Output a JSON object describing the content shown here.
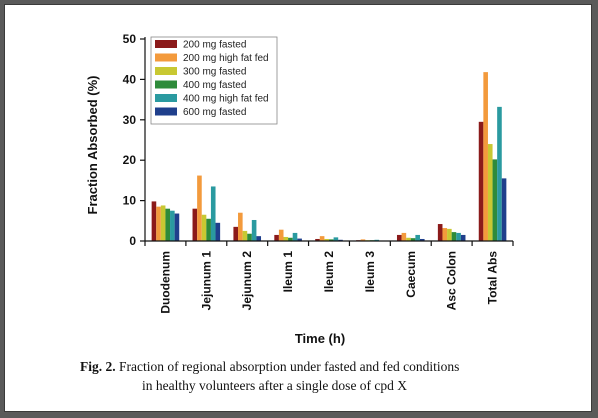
{
  "chart_data": {
    "type": "bar",
    "xlabel": "Time (h)",
    "ylabel": "Fraction Absorbed (%)",
    "ylim": [
      0,
      50
    ],
    "yticks": [
      0,
      10,
      20,
      30,
      40,
      50
    ],
    "legend_position": "top-left",
    "categories": [
      "Duodenum",
      "Jejunum 1",
      "Jejunum 2",
      "Ileum 1",
      "Ileum 2",
      "Ileum 3",
      "Caecum",
      "Asc Colon",
      "Total Abs"
    ],
    "series": [
      {
        "name": "200 mg fasted",
        "color": "#8b1a1a",
        "values": [
          9.8,
          8.0,
          3.5,
          1.5,
          0.5,
          0.2,
          1.5,
          4.2,
          29.5
        ]
      },
      {
        "name": "200 mg high fat fed",
        "color": "#f39a3c",
        "values": [
          8.5,
          16.2,
          7.0,
          2.8,
          1.2,
          0.4,
          2.0,
          3.2,
          41.8
        ]
      },
      {
        "name": "300 mg fasted",
        "color": "#c8c832",
        "values": [
          8.8,
          6.5,
          2.5,
          1.0,
          0.5,
          0.2,
          0.8,
          3.0,
          24.0
        ]
      },
      {
        "name": "400 mg fasted",
        "color": "#2e8b3a",
        "values": [
          8.0,
          5.5,
          1.8,
          0.8,
          0.4,
          0.2,
          0.7,
          2.2,
          20.2
        ]
      },
      {
        "name": "400 mg high fat fed",
        "color": "#2a9aa0",
        "values": [
          7.5,
          13.5,
          5.2,
          2.0,
          0.9,
          0.3,
          1.5,
          2.0,
          33.2
        ]
      },
      {
        "name": "600 mg fasted",
        "color": "#1f3f8c",
        "values": [
          6.8,
          4.5,
          1.2,
          0.6,
          0.3,
          0.1,
          0.5,
          1.5,
          15.5
        ]
      }
    ]
  },
  "caption": {
    "label": "Fig. 2.",
    "line1": "Fraction of regional absorption under fasted and fed conditions",
    "line2": "in healthy volunteers after a single dose of cpd X"
  }
}
